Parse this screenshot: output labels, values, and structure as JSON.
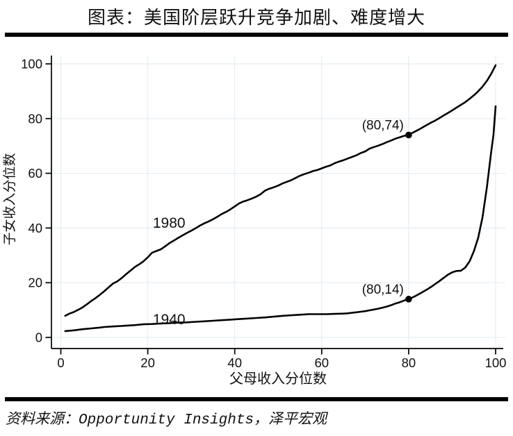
{
  "header": {
    "title": "图表：美国阶层跃升竞争加剧、难度增大"
  },
  "footer": {
    "source": "资料来源：Opportunity Insights，泽平宏观"
  },
  "colors": {
    "line": "#000000",
    "grid": "#e4edf2",
    "axis": "#000000",
    "text": "#111111",
    "background": "#ffffff"
  },
  "chart_data": {
    "type": "line",
    "title": "图表：美国阶层跃升竞争加剧、难度增大",
    "xlabel": "父母收入分位数",
    "ylabel": "子女收入分位数",
    "xlim": [
      0,
      100
    ],
    "ylim": [
      0,
      100
    ],
    "xticks": [
      "0",
      "20",
      "40",
      "60",
      "80",
      "100"
    ],
    "yticks": [
      "0",
      "20",
      "40",
      "60",
      "80",
      "100"
    ],
    "grid": true,
    "legend_position": "inline-labels",
    "series": [
      {
        "name": "1980",
        "label_anchor": {
          "x": 24.9,
          "y": 40.1
        },
        "points": [
          [
            1,
            7.9
          ],
          [
            2,
            8.7
          ],
          [
            3,
            9.3
          ],
          [
            4,
            10.1
          ],
          [
            5,
            11
          ],
          [
            6,
            12.1
          ],
          [
            7,
            13.3
          ],
          [
            8,
            14.4
          ],
          [
            9,
            15.6
          ],
          [
            10,
            16.9
          ],
          [
            11,
            18.3
          ],
          [
            12,
            19.7
          ],
          [
            13,
            20.5
          ],
          [
            14,
            21.7
          ],
          [
            15,
            23.1
          ],
          [
            16,
            24.4
          ],
          [
            17,
            25.7
          ],
          [
            18,
            26.7
          ],
          [
            19,
            27.8
          ],
          [
            20,
            29.3
          ],
          [
            21,
            31
          ],
          [
            22,
            31.6
          ],
          [
            23,
            32.2
          ],
          [
            24,
            33.3
          ],
          [
            25,
            34.5
          ],
          [
            26,
            35.4
          ],
          [
            27,
            36.4
          ],
          [
            28,
            37.3
          ],
          [
            29,
            38.2
          ],
          [
            30,
            39
          ],
          [
            31,
            39.9
          ],
          [
            32,
            40.9
          ],
          [
            33,
            41.7
          ],
          [
            34,
            42.4
          ],
          [
            35,
            43.2
          ],
          [
            36,
            44.1
          ],
          [
            37,
            45.1
          ],
          [
            38,
            45.9
          ],
          [
            39,
            46.8
          ],
          [
            40,
            47.9
          ],
          [
            41,
            49
          ],
          [
            42,
            49.7
          ],
          [
            43,
            50.2
          ],
          [
            44,
            50.8
          ],
          [
            45,
            51.5
          ],
          [
            46,
            52.4
          ],
          [
            47,
            53.7
          ],
          [
            48,
            54.4
          ],
          [
            49,
            54.9
          ],
          [
            50,
            55.5
          ],
          [
            51,
            56.3
          ],
          [
            52,
            56.9
          ],
          [
            53,
            57.5
          ],
          [
            54,
            58.3
          ],
          [
            55,
            59.1
          ],
          [
            56,
            59.7
          ],
          [
            57,
            60.2
          ],
          [
            58,
            60.8
          ],
          [
            59,
            61.2
          ],
          [
            60,
            61.8
          ],
          [
            61,
            62.4
          ],
          [
            62,
            62.9
          ],
          [
            63,
            63.7
          ],
          [
            64,
            64.3
          ],
          [
            65,
            64.8
          ],
          [
            66,
            65.4
          ],
          [
            67,
            66
          ],
          [
            68,
            66.6
          ],
          [
            69,
            67.4
          ],
          [
            70,
            68
          ],
          [
            71,
            69
          ],
          [
            72,
            69.6
          ],
          [
            73,
            70.1
          ],
          [
            74,
            70.7
          ],
          [
            75,
            71.4
          ],
          [
            76,
            72
          ],
          [
            77,
            72.7
          ],
          [
            78,
            73.2
          ],
          [
            79,
            73.7
          ],
          [
            80,
            74.1
          ],
          [
            81,
            74.9
          ],
          [
            82,
            75.7
          ],
          [
            83,
            76.6
          ],
          [
            84,
            77.5
          ],
          [
            85,
            78.4
          ],
          [
            86,
            79.2
          ],
          [
            87,
            80.1
          ],
          [
            88,
            81.1
          ],
          [
            89,
            82
          ],
          [
            90,
            83
          ],
          [
            91,
            84
          ],
          [
            92,
            85
          ],
          [
            93,
            86
          ],
          [
            94,
            87.2
          ],
          [
            95,
            88.5
          ],
          [
            96,
            90
          ],
          [
            97,
            91.7
          ],
          [
            98,
            93.8
          ],
          [
            99,
            96.4
          ],
          [
            100,
            99.5
          ]
        ]
      },
      {
        "name": "1940",
        "label_anchor": {
          "x": 24.9,
          "y": 4.8
        },
        "points": [
          [
            1,
            2.3
          ],
          [
            3,
            2.6
          ],
          [
            5,
            3
          ],
          [
            7,
            3.3
          ],
          [
            9,
            3.6
          ],
          [
            10,
            3.8
          ],
          [
            12,
            4
          ],
          [
            14,
            4.2
          ],
          [
            15,
            4.3
          ],
          [
            17,
            4.5
          ],
          [
            19,
            4.8
          ],
          [
            21,
            4.9
          ],
          [
            23,
            5.1
          ],
          [
            25,
            5.2
          ],
          [
            27,
            5.4
          ],
          [
            29,
            5.5
          ],
          [
            31,
            5.7
          ],
          [
            33,
            5.9
          ],
          [
            35,
            6.1
          ],
          [
            37,
            6.3
          ],
          [
            39,
            6.5
          ],
          [
            41,
            6.7
          ],
          [
            43,
            6.9
          ],
          [
            45,
            7.1
          ],
          [
            47,
            7.3
          ],
          [
            49,
            7.6
          ],
          [
            51,
            7.9
          ],
          [
            52,
            8
          ],
          [
            54,
            8.2
          ],
          [
            56,
            8.4
          ],
          [
            57,
            8.5
          ],
          [
            59,
            8.5
          ],
          [
            61,
            8.5
          ],
          [
            63,
            8.6
          ],
          [
            65,
            8.7
          ],
          [
            66,
            8.8
          ],
          [
            67,
            9
          ],
          [
            68,
            9.2
          ],
          [
            69,
            9.4
          ],
          [
            70,
            9.6
          ],
          [
            71,
            9.9
          ],
          [
            72,
            10.2
          ],
          [
            73,
            10.5
          ],
          [
            74,
            10.9
          ],
          [
            75,
            11.3
          ],
          [
            76,
            11.8
          ],
          [
            77,
            12.4
          ],
          [
            78,
            12.9
          ],
          [
            79,
            13.5
          ],
          [
            80,
            14
          ],
          [
            81,
            14.7
          ],
          [
            82,
            15.5
          ],
          [
            83,
            16.4
          ],
          [
            84,
            17.3
          ],
          [
            85,
            18.3
          ],
          [
            86,
            19.4
          ],
          [
            87,
            20.5
          ],
          [
            88,
            21.7
          ],
          [
            89,
            22.9
          ],
          [
            90,
            23.8
          ],
          [
            91,
            24.3
          ],
          [
            92,
            24.4
          ],
          [
            93,
            25.5
          ],
          [
            94,
            27.8
          ],
          [
            95,
            31.5
          ],
          [
            96,
            36.5
          ],
          [
            97,
            44
          ],
          [
            98,
            55
          ],
          [
            99,
            68
          ],
          [
            99.5,
            74
          ],
          [
            100,
            84.5
          ]
        ]
      }
    ],
    "annotations": [
      {
        "text": "(80,74)",
        "x": 80,
        "y": 74
      },
      {
        "text": "(80,14)",
        "x": 80,
        "y": 14
      }
    ]
  }
}
